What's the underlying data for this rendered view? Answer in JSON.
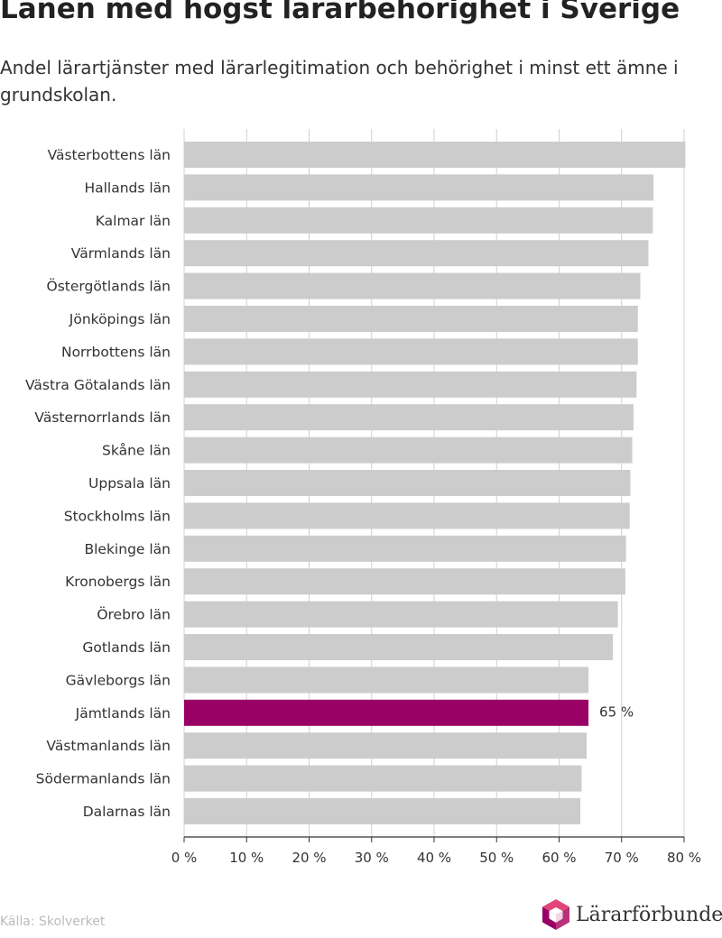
{
  "header": {
    "title": "Länen med högst lärarbehörighet i Sverige",
    "subtitle": "Andel lärartjänster med lärarlegitimation och behörighet i minst ett ämne i grundskolan."
  },
  "footer": {
    "source": "Källa: Skolverket",
    "logo_text": "Lärarförbundet"
  },
  "colors": {
    "bar": "#cccccc",
    "highlight": "#990066",
    "axis": "#333333",
    "grid": "#d0d0d0"
  },
  "chart_data": {
    "type": "bar",
    "orientation": "horizontal",
    "categories": [
      "Västerbottens län",
      "Hallands län",
      "Kalmar län",
      "Värmlands län",
      "Östergötlands län",
      "Jönköpings län",
      "Norrbottens län",
      "Västra Götalands län",
      "Västernorrlands län",
      "Skåne län",
      "Uppsala län",
      "Stockholms län",
      "Blekinge län",
      "Kronobergs län",
      "Örebro län",
      "Gotlands län",
      "Gävleborgs län",
      "Jämtlands län",
      "Västmanlands län",
      "Södermanlands län",
      "Dalarnas län"
    ],
    "values": [
      80.2,
      75.1,
      75.0,
      74.3,
      73.0,
      72.6,
      72.6,
      72.4,
      71.9,
      71.7,
      71.4,
      71.3,
      70.7,
      70.6,
      69.4,
      68.6,
      64.7,
      64.7,
      64.4,
      63.6,
      63.4
    ],
    "highlight": {
      "category": "Jämtlands län",
      "label": "65 %"
    },
    "xlim": [
      0,
      80
    ],
    "xticks": [
      0,
      10,
      20,
      30,
      40,
      50,
      60,
      70,
      80
    ],
    "xtick_labels": [
      "0 %",
      "10 %",
      "20 %",
      "30 %",
      "40 %",
      "50 %",
      "60 %",
      "70 %",
      "80 %"
    ],
    "grid": true,
    "xlabel": "",
    "ylabel": ""
  }
}
